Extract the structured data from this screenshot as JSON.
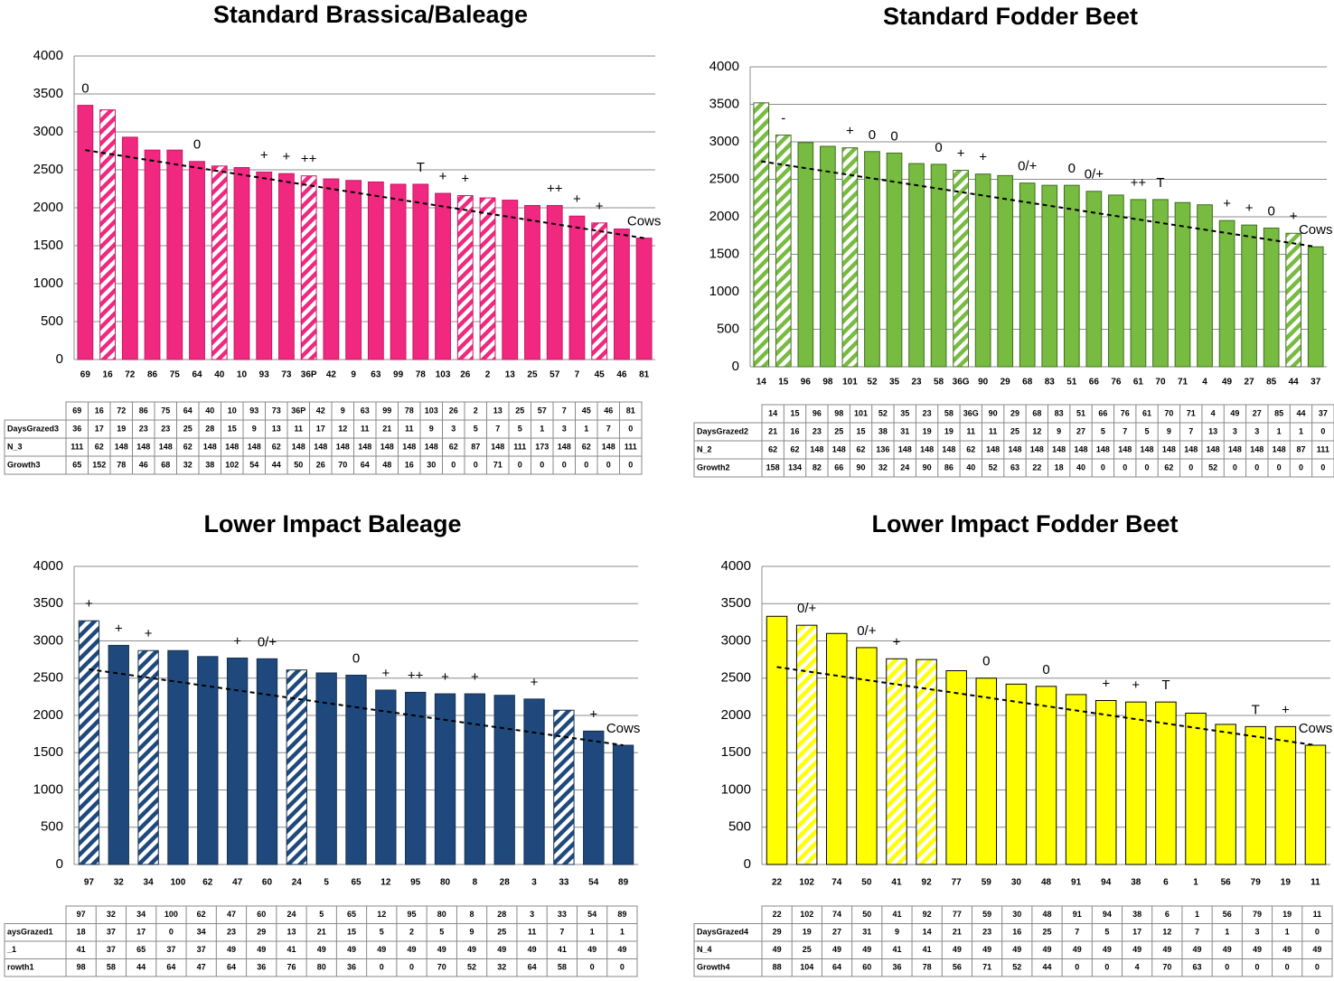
{
  "chart_data": [
    {
      "type": "bar",
      "title": "Standard Brassica/Baleage",
      "color": "#f0287f",
      "edgecolor": "#c81864",
      "categories": [
        "69",
        "16",
        "72",
        "86",
        "75",
        "64",
        "40",
        "10",
        "93",
        "73",
        "36P",
        "42",
        "9",
        "63",
        "99",
        "78",
        "103",
        "26",
        "2",
        "13",
        "25",
        "57",
        "7",
        "45",
        "46",
        "81"
      ],
      "values": [
        3350,
        3290,
        2930,
        2760,
        2760,
        2610,
        2550,
        2530,
        2470,
        2450,
        2420,
        2380,
        2360,
        2340,
        2310,
        2310,
        2190,
        2160,
        2130,
        2100,
        2030,
        2030,
        1890,
        1800,
        1720,
        1600
      ],
      "hatched": [
        false,
        true,
        false,
        false,
        false,
        false,
        true,
        false,
        false,
        false,
        true,
        false,
        false,
        false,
        false,
        false,
        false,
        true,
        true,
        false,
        false,
        false,
        false,
        true,
        false,
        false
      ],
      "annotations": [
        "0",
        null,
        null,
        null,
        null,
        "0",
        null,
        null,
        "+",
        "+",
        "++",
        null,
        null,
        null,
        null,
        "T",
        "+",
        "+",
        null,
        null,
        null,
        "++",
        "+",
        "+",
        null,
        "Cows"
      ],
      "trendline": [
        2760,
        1600
      ],
      "ylim": [
        0,
        4000
      ],
      "yticks": [
        0,
        500,
        1000,
        1500,
        2000,
        2500,
        3000,
        3500,
        4000
      ],
      "grid": true,
      "table": [
        {
          "label": "DaysGrazed3",
          "values": [
            36,
            17,
            19,
            23,
            23,
            25,
            28,
            15,
            9,
            13,
            11,
            17,
            12,
            11,
            21,
            11,
            9,
            3,
            5,
            7,
            5,
            1,
            3,
            1,
            7,
            0
          ]
        },
        {
          "label": "N_3",
          "values": [
            111,
            62,
            148,
            148,
            148,
            62,
            148,
            148,
            148,
            62,
            148,
            148,
            148,
            148,
            148,
            148,
            148,
            62,
            87,
            148,
            111,
            173,
            148,
            62,
            148,
            111
          ]
        },
        {
          "label": "Growth3",
          "values": [
            65,
            152,
            78,
            46,
            68,
            32,
            38,
            102,
            54,
            44,
            50,
            26,
            70,
            64,
            48,
            16,
            30,
            0,
            0,
            71,
            0,
            0,
            0,
            0,
            0,
            0
          ]
        }
      ]
    },
    {
      "type": "bar",
      "title": "Standard Fodder Beet",
      "color": "#77bb41",
      "edgecolor": "#3f6d1f",
      "categories": [
        "14",
        "15",
        "96",
        "98",
        "101",
        "52",
        "35",
        "23",
        "58",
        "36G",
        "90",
        "29",
        "68",
        "83",
        "51",
        "66",
        "76",
        "61",
        "70",
        "71",
        "4",
        "49",
        "27",
        "85",
        "44",
        "37"
      ],
      "values": [
        3520,
        3090,
        2990,
        2940,
        2920,
        2870,
        2850,
        2710,
        2700,
        2620,
        2570,
        2550,
        2450,
        2420,
        2420,
        2340,
        2290,
        2230,
        2230,
        2190,
        2160,
        1950,
        1890,
        1850,
        1780,
        1600
      ],
      "hatched": [
        true,
        true,
        false,
        false,
        true,
        false,
        false,
        false,
        false,
        true,
        false,
        false,
        false,
        false,
        false,
        false,
        false,
        false,
        false,
        false,
        false,
        false,
        false,
        false,
        true,
        false
      ],
      "annotations": [
        null,
        "-",
        null,
        null,
        "+",
        "0",
        "0",
        null,
        "0",
        "+",
        "+",
        null,
        "0/+",
        null,
        "0",
        "0/+",
        null,
        "++",
        "T",
        null,
        null,
        "+",
        "+",
        "0",
        "+",
        "Cows"
      ],
      "trendline": [
        2740,
        1600
      ],
      "ylim": [
        0,
        4000
      ],
      "yticks": [
        0,
        500,
        1000,
        1500,
        2000,
        2500,
        3000,
        3500,
        4000
      ],
      "grid": true,
      "table": [
        {
          "label": "DaysGrazed2",
          "values": [
            21,
            16,
            23,
            25,
            15,
            38,
            31,
            19,
            19,
            11,
            11,
            25,
            12,
            9,
            27,
            5,
            7,
            5,
            9,
            7,
            13,
            3,
            3,
            1,
            1,
            0
          ]
        },
        {
          "label": "N_2",
          "values": [
            62,
            62,
            148,
            148,
            62,
            136,
            148,
            148,
            148,
            62,
            148,
            148,
            148,
            148,
            148,
            148,
            148,
            148,
            148,
            148,
            148,
            148,
            148,
            148,
            87,
            111
          ]
        },
        {
          "label": "Growth2",
          "values": [
            158,
            134,
            82,
            66,
            90,
            32,
            24,
            90,
            86,
            40,
            52,
            63,
            22,
            18,
            40,
            0,
            0,
            0,
            62,
            0,
            52,
            0,
            0,
            0,
            0,
            0
          ]
        }
      ]
    },
    {
      "type": "bar",
      "title": "Lower Impact Baleage",
      "color": "#1f497d",
      "edgecolor": "#14304f",
      "categories": [
        "97",
        "32",
        "34",
        "100",
        "62",
        "47",
        "60",
        "24",
        "5",
        "65",
        "12",
        "95",
        "80",
        "8",
        "28",
        "3",
        "33",
        "54",
        "89"
      ],
      "values": [
        3270,
        2940,
        2870,
        2870,
        2790,
        2770,
        2760,
        2610,
        2570,
        2540,
        2340,
        2310,
        2290,
        2290,
        2270,
        2220,
        2070,
        1790,
        1600
      ],
      "hatched": [
        true,
        false,
        true,
        false,
        false,
        false,
        false,
        true,
        false,
        false,
        false,
        false,
        false,
        false,
        false,
        false,
        true,
        false,
        false
      ],
      "annotations": [
        "+",
        "+",
        "+",
        null,
        null,
        "+",
        "0/+",
        null,
        null,
        "0",
        "+",
        "++",
        "+",
        "+",
        null,
        "+",
        null,
        "+",
        "Cows"
      ],
      "trendline": [
        2620,
        1600
      ],
      "ylim": [
        0,
        4000
      ],
      "yticks": [
        0,
        500,
        1000,
        1500,
        2000,
        2500,
        3000,
        3500,
        4000
      ],
      "grid": true,
      "table": [
        {
          "label": "aysGrazed1",
          "values": [
            18,
            37,
            17,
            0,
            34,
            23,
            29,
            13,
            21,
            15,
            5,
            2,
            5,
            9,
            25,
            11,
            7,
            1,
            1
          ]
        },
        {
          "label": "_1",
          "values": [
            41,
            37,
            65,
            37,
            37,
            49,
            49,
            41,
            49,
            49,
            49,
            49,
            49,
            49,
            49,
            49,
            41,
            49,
            49
          ]
        },
        {
          "label": "rowth1",
          "values": [
            98,
            58,
            44,
            64,
            47,
            64,
            36,
            76,
            80,
            36,
            0,
            0,
            70,
            52,
            32,
            64,
            58,
            0,
            0
          ]
        }
      ]
    },
    {
      "type": "bar",
      "title": "Lower Impact Fodder Beet",
      "color": "#ffff00",
      "edgecolor": "#000000",
      "categories": [
        "22",
        "102",
        "74",
        "50",
        "41",
        "92",
        "77",
        "59",
        "30",
        "48",
        "91",
        "94",
        "38",
        "6",
        "1",
        "56",
        "79",
        "19",
        "11"
      ],
      "values": [
        3330,
        3210,
        3100,
        2910,
        2760,
        2750,
        2600,
        2500,
        2420,
        2390,
        2280,
        2200,
        2180,
        2180,
        2030,
        1880,
        1850,
        1850,
        1600
      ],
      "hatched": [
        false,
        true,
        false,
        false,
        true,
        true,
        false,
        false,
        false,
        false,
        false,
        false,
        false,
        false,
        false,
        false,
        false,
        false,
        false
      ],
      "annotations": [
        null,
        "0/+",
        null,
        "0/+",
        "+",
        null,
        null,
        "0",
        null,
        "0",
        null,
        "+",
        "+",
        "T",
        null,
        null,
        "T",
        "+",
        "Cows"
      ],
      "trendline": [
        2650,
        1600
      ],
      "ylim": [
        0,
        4000
      ],
      "yticks": [
        0,
        500,
        1000,
        1500,
        2000,
        2500,
        3000,
        3500,
        4000
      ],
      "grid": true,
      "table": [
        {
          "label": "DaysGrazed4",
          "values": [
            29,
            19,
            27,
            31,
            9,
            14,
            21,
            23,
            16,
            25,
            7,
            5,
            17,
            12,
            7,
            1,
            3,
            1,
            0
          ]
        },
        {
          "label": "N_4",
          "values": [
            49,
            25,
            49,
            49,
            41,
            41,
            49,
            49,
            49,
            49,
            49,
            49,
            49,
            49,
            49,
            49,
            49,
            49,
            49
          ]
        },
        {
          "label": "Growth4",
          "values": [
            88,
            104,
            64,
            60,
            36,
            78,
            56,
            71,
            52,
            44,
            0,
            0,
            4,
            70,
            63,
            0,
            0,
            0,
            0
          ]
        }
      ]
    }
  ]
}
